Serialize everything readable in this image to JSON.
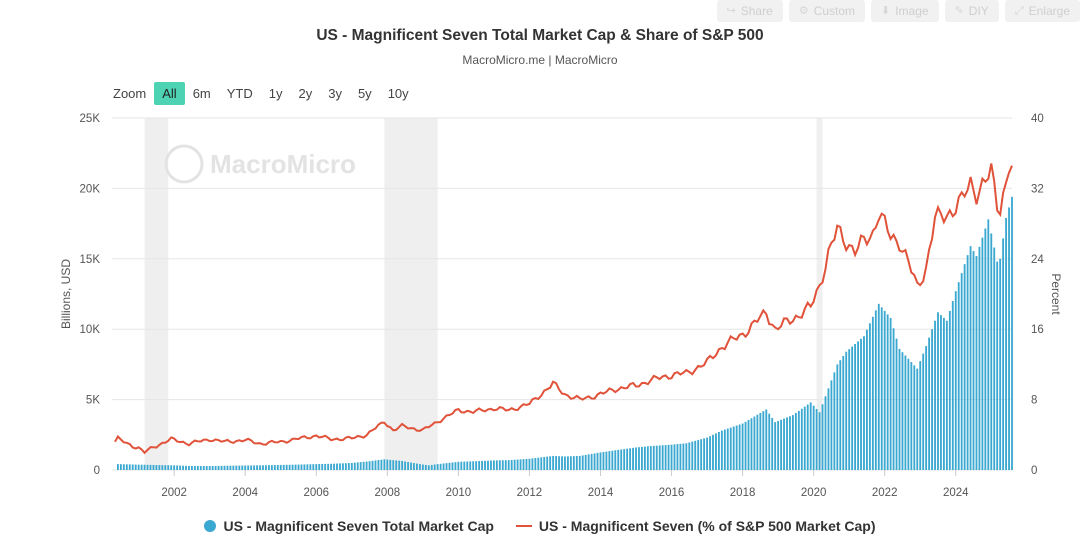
{
  "toolbar": {
    "buttons": [
      {
        "label": "Share",
        "icon": "share-icon"
      },
      {
        "label": "Custom",
        "icon": "gear-icon"
      },
      {
        "label": "Image",
        "icon": "download-icon"
      },
      {
        "label": "DIY",
        "icon": "pencil-icon"
      },
      {
        "label": "Enlarge",
        "icon": "expand-icon"
      }
    ]
  },
  "header": {
    "title": "US - Magnificent Seven Total Market Cap & Share of S&P 500",
    "subtitle": "MacroMicro.me | MacroMicro"
  },
  "zoom": {
    "label": "Zoom",
    "options": [
      "All",
      "6m",
      "YTD",
      "1y",
      "2y",
      "3y",
      "5y",
      "10y"
    ],
    "selected": "All"
  },
  "watermark": "MacroMicro",
  "colors": {
    "bars": "#3aa8d0",
    "line": "#e0533a",
    "recession": "#efefef",
    "accent": "#4dd2b4"
  },
  "chart_data": {
    "type": "bar",
    "x_type": "datetime",
    "xlim": [
      "2000-04",
      "2025-08"
    ],
    "x_ticks": [
      "2002",
      "2004",
      "2006",
      "2008",
      "2010",
      "2012",
      "2014",
      "2016",
      "2018",
      "2020",
      "2022",
      "2024"
    ],
    "recession_bands": [
      [
        "2001-03",
        "2001-11"
      ],
      [
        "2007-12",
        "2009-06"
      ],
      [
        "2020-02",
        "2020-04"
      ]
    ],
    "y_left": {
      "label": "Billions, USD",
      "ylim": [
        0,
        25000
      ],
      "ticks": [
        "0",
        "5K",
        "10K",
        "15K",
        "20K",
        "25K"
      ]
    },
    "y_right": {
      "label": "Percent",
      "ylim": [
        0,
        40
      ],
      "ticks": [
        "0",
        "8",
        "16",
        "24",
        "32",
        "40"
      ]
    },
    "series": [
      {
        "name": "US - Magnificent Seven Total Market Cap",
        "type": "column",
        "axis": "left",
        "points": [
          [
            "2000-06",
            420
          ],
          [
            "2001-01",
            380
          ],
          [
            "2001-06",
            360
          ],
          [
            "2002-01",
            330
          ],
          [
            "2002-06",
            290
          ],
          [
            "2003-01",
            280
          ],
          [
            "2003-06",
            300
          ],
          [
            "2004-01",
            320
          ],
          [
            "2004-06",
            330
          ],
          [
            "2005-01",
            360
          ],
          [
            "2005-06",
            380
          ],
          [
            "2006-01",
            420
          ],
          [
            "2006-06",
            440
          ],
          [
            "2007-01",
            500
          ],
          [
            "2007-06",
            600
          ],
          [
            "2007-12",
            760
          ],
          [
            "2008-06",
            640
          ],
          [
            "2008-12",
            420
          ],
          [
            "2009-03",
            330
          ],
          [
            "2009-06",
            420
          ],
          [
            "2010-01",
            580
          ],
          [
            "2010-06",
            620
          ],
          [
            "2011-01",
            680
          ],
          [
            "2011-06",
            700
          ],
          [
            "2012-01",
            800
          ],
          [
            "2012-09",
            1000
          ],
          [
            "2013-01",
            960
          ],
          [
            "2013-06",
            1000
          ],
          [
            "2014-01",
            1250
          ],
          [
            "2014-06",
            1400
          ],
          [
            "2015-01",
            1600
          ],
          [
            "2015-06",
            1700
          ],
          [
            "2016-01",
            1800
          ],
          [
            "2016-06",
            1900
          ],
          [
            "2017-01",
            2300
          ],
          [
            "2017-06",
            2800
          ],
          [
            "2018-01",
            3300
          ],
          [
            "2018-09",
            4300
          ],
          [
            "2018-12",
            3400
          ],
          [
            "2019-06",
            3900
          ],
          [
            "2019-12",
            4800
          ],
          [
            "2020-03",
            4100
          ],
          [
            "2020-06",
            5800
          ],
          [
            "2020-09",
            7500
          ],
          [
            "2020-12",
            8400
          ],
          [
            "2021-06",
            9500
          ],
          [
            "2021-11",
            11800
          ],
          [
            "2022-03",
            10800
          ],
          [
            "2022-06",
            8600
          ],
          [
            "2022-12",
            7200
          ],
          [
            "2023-03",
            8800
          ],
          [
            "2023-07",
            11200
          ],
          [
            "2023-10",
            10600
          ],
          [
            "2024-01",
            12700
          ],
          [
            "2024-06",
            15900
          ],
          [
            "2024-08",
            15200
          ],
          [
            "2024-12",
            17800
          ],
          [
            "2025-03",
            14800
          ],
          [
            "2025-04",
            15000
          ],
          [
            "2025-06",
            17900
          ],
          [
            "2025-08",
            19400
          ]
        ]
      },
      {
        "name": "US - Magnificent Seven (% of S&P 500 Market Cap)",
        "type": "line",
        "axis": "right",
        "points": [
          [
            "2000-05",
            3.2
          ],
          [
            "2000-06",
            3.6
          ],
          [
            "2000-09",
            3.0
          ],
          [
            "2001-01",
            2.5
          ],
          [
            "2001-03",
            2.0
          ],
          [
            "2001-06",
            2.6
          ],
          [
            "2001-12",
            3.5
          ],
          [
            "2002-06",
            3.0
          ],
          [
            "2003-01",
            3.5
          ],
          [
            "2003-06",
            3.2
          ],
          [
            "2004-01",
            3.4
          ],
          [
            "2004-06",
            3.0
          ],
          [
            "2005-01",
            3.2
          ],
          [
            "2005-06",
            3.5
          ],
          [
            "2006-01",
            3.9
          ],
          [
            "2006-06",
            3.5
          ],
          [
            "2007-01",
            3.6
          ],
          [
            "2007-06",
            4.0
          ],
          [
            "2007-12",
            5.5
          ],
          [
            "2008-03",
            4.5
          ],
          [
            "2008-06",
            5.0
          ],
          [
            "2009-01",
            4.5
          ],
          [
            "2009-06",
            5.5
          ],
          [
            "2010-01",
            6.8
          ],
          [
            "2010-06",
            6.6
          ],
          [
            "2011-01",
            7.0
          ],
          [
            "2011-06",
            6.8
          ],
          [
            "2012-01",
            7.5
          ],
          [
            "2012-09",
            9.8
          ],
          [
            "2013-01",
            8.6
          ],
          [
            "2013-06",
            8.0
          ],
          [
            "2014-01",
            8.6
          ],
          [
            "2014-06",
            9.2
          ],
          [
            "2015-01",
            9.6
          ],
          [
            "2015-06",
            10.2
          ],
          [
            "2016-01",
            10.8
          ],
          [
            "2016-06",
            11.0
          ],
          [
            "2017-01",
            12.2
          ],
          [
            "2017-06",
            14.0
          ],
          [
            "2018-01",
            15.4
          ],
          [
            "2018-09",
            17.9
          ],
          [
            "2018-12",
            16.0
          ],
          [
            "2019-06",
            17.2
          ],
          [
            "2019-12",
            18.5
          ],
          [
            "2020-03",
            21.0
          ],
          [
            "2020-06",
            24.5
          ],
          [
            "2020-09",
            27.3
          ],
          [
            "2020-12",
            26.0
          ],
          [
            "2021-03",
            24.8
          ],
          [
            "2021-06",
            26.0
          ],
          [
            "2021-09",
            27.0
          ],
          [
            "2021-11",
            29.2
          ],
          [
            "2022-03",
            26.5
          ],
          [
            "2022-06",
            26.0
          ],
          [
            "2022-09",
            23.5
          ],
          [
            "2022-12",
            20.8
          ],
          [
            "2023-03",
            23.0
          ],
          [
            "2023-06",
            28.5
          ],
          [
            "2023-09",
            29.0
          ],
          [
            "2023-12",
            29.5
          ],
          [
            "2024-03",
            30.5
          ],
          [
            "2024-06",
            32.8
          ],
          [
            "2024-08",
            31.5
          ],
          [
            "2024-11",
            32.5
          ],
          [
            "2025-01",
            34.0
          ],
          [
            "2025-03",
            30.4
          ],
          [
            "2025-04",
            30.0
          ],
          [
            "2025-06",
            32.5
          ],
          [
            "2025-07",
            34.3
          ],
          [
            "2025-08",
            34.1
          ]
        ]
      }
    ]
  }
}
